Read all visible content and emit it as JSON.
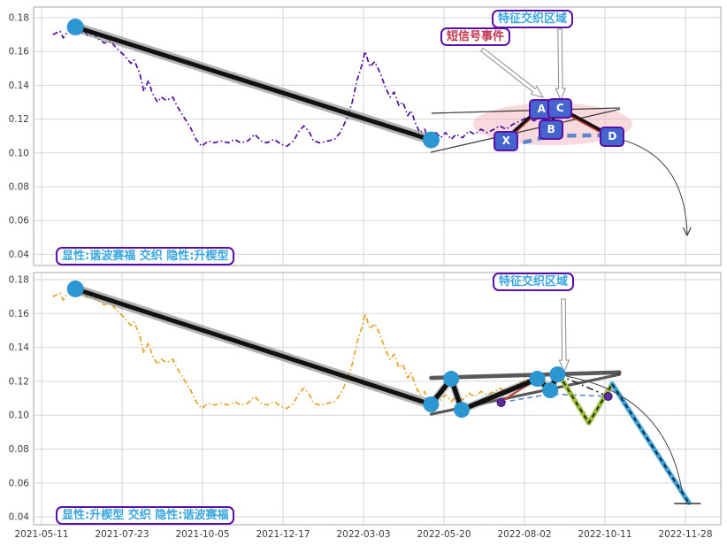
{
  "figure": {
    "background": "#ffffff",
    "grid": "#d5d5dd",
    "spine": "#b4b4bc",
    "tick_text": "#3c3c3c",
    "marker_blue": "#2b96d2",
    "box_fill": "#4565ce",
    "border_purple": "#5a0fa8",
    "label_blue": "#38a6de",
    "label_red": "#c23650",
    "ellipse_pink": "#f0abb4",
    "fit_blue": "#4a7bc8",
    "zigzag_green": "#9dbe3c",
    "zigzag_cyan": "#3fa4dc",
    "pattern_red": "#c03a30",
    "purple_dot": "#5b2c9e",
    "line_black": "#111111"
  },
  "chart_data": {
    "type": "line",
    "x_tick_labels": [
      "2021-05-11",
      "2021-07-23",
      "2021-10-05",
      "2021-12-17",
      "2022-03-03",
      "2022-05-20",
      "2022-08-02",
      "2022-10-11",
      "2022-11-28"
    ],
    "y_ticks": [
      0.18,
      0.16,
      0.14,
      0.12,
      0.1,
      0.08,
      0.06,
      0.04
    ],
    "ylim": [
      0.033,
      0.187
    ],
    "grid": true,
    "price_series_points": [
      [
        0.14,
        0.17
      ],
      [
        0.23,
        0.172
      ],
      [
        0.27,
        0.168
      ],
      [
        0.34,
        0.173
      ],
      [
        0.42,
        0.1745
      ],
      [
        0.47,
        0.17
      ],
      [
        0.53,
        0.172
      ],
      [
        0.58,
        0.169
      ],
      [
        0.64,
        0.171
      ],
      [
        0.69,
        0.168
      ],
      [
        0.78,
        0.165
      ],
      [
        0.86,
        0.166
      ],
      [
        0.93,
        0.162
      ],
      [
        1.02,
        0.158
      ],
      [
        1.11,
        0.153
      ],
      [
        1.15,
        0.155
      ],
      [
        1.22,
        0.147
      ],
      [
        1.27,
        0.1365
      ],
      [
        1.33,
        0.143
      ],
      [
        1.37,
        0.136
      ],
      [
        1.44,
        0.13
      ],
      [
        1.49,
        0.133
      ],
      [
        1.55,
        0.131
      ],
      [
        1.63,
        0.133
      ],
      [
        1.68,
        0.128
      ],
      [
        1.77,
        0.121
      ],
      [
        1.85,
        0.115
      ],
      [
        1.92,
        0.108
      ],
      [
        1.99,
        0.104
      ],
      [
        2.07,
        0.107
      ],
      [
        2.14,
        0.106
      ],
      [
        2.23,
        0.107
      ],
      [
        2.32,
        0.106
      ],
      [
        2.4,
        0.108
      ],
      [
        2.47,
        0.106
      ],
      [
        2.56,
        0.107
      ],
      [
        2.65,
        0.111
      ],
      [
        2.73,
        0.107
      ],
      [
        2.8,
        0.106
      ],
      [
        2.89,
        0.108
      ],
      [
        2.98,
        0.105
      ],
      [
        3.05,
        0.104
      ],
      [
        3.13,
        0.107
      ],
      [
        3.2,
        0.113
      ],
      [
        3.26,
        0.116
      ],
      [
        3.33,
        0.112
      ],
      [
        3.38,
        0.107
      ],
      [
        3.46,
        0.106
      ],
      [
        3.55,
        0.107
      ],
      [
        3.64,
        0.108
      ],
      [
        3.71,
        0.112
      ],
      [
        3.79,
        0.12
      ],
      [
        3.86,
        0.13
      ],
      [
        3.92,
        0.143
      ],
      [
        3.98,
        0.152
      ],
      [
        4.02,
        0.16
      ],
      [
        4.08,
        0.151
      ],
      [
        4.14,
        0.154
      ],
      [
        4.21,
        0.147
      ],
      [
        4.27,
        0.139
      ],
      [
        4.33,
        0.133
      ],
      [
        4.38,
        0.136
      ],
      [
        4.44,
        0.128
      ],
      [
        4.49,
        0.13
      ],
      [
        4.55,
        0.122
      ],
      [
        4.59,
        0.125
      ],
      [
        4.65,
        0.117
      ],
      [
        4.7,
        0.112
      ],
      [
        4.76,
        0.114
      ],
      [
        4.8,
        0.109
      ],
      [
        4.85,
        0.107
      ],
      [
        4.9,
        0.112
      ],
      [
        4.96,
        0.109
      ],
      [
        5.02,
        0.112
      ],
      [
        5.09,
        0.108
      ],
      [
        5.15,
        0.111
      ],
      [
        5.23,
        0.109
      ],
      [
        5.31,
        0.113
      ],
      [
        5.38,
        0.111
      ],
      [
        5.46,
        0.114
      ],
      [
        5.54,
        0.112
      ],
      [
        5.62,
        0.114
      ],
      [
        5.69,
        0.116
      ],
      [
        5.77,
        0.114
      ],
      [
        5.86,
        0.117
      ],
      [
        5.95,
        0.119
      ],
      [
        6.03,
        0.121
      ],
      [
        6.12,
        0.119
      ],
      [
        6.21,
        0.121
      ],
      [
        6.27,
        0.12
      ]
    ],
    "panels": [
      {
        "id": "top",
        "series_color": "#4c0b9b",
        "trend_line": [
          [
            0.42,
            0.1745
          ],
          [
            4.84,
            0.1077
          ]
        ],
        "trend_dots": [
          [
            0.42,
            0.1745
          ],
          [
            4.84,
            0.1077
          ]
        ],
        "wedge_upper": [
          [
            4.85,
            0.1235
          ],
          [
            7.18,
            0.1266
          ]
        ],
        "wedge_lower": [
          [
            4.84,
            0.1004
          ],
          [
            7.18,
            0.1258
          ]
        ],
        "wedge_thick": false,
        "harmonic_points": [
          {
            "label": "X",
            "u": 5.75,
            "v": 0.1077
          },
          {
            "label": "A",
            "u": 6.19,
            "v": 0.1266
          },
          {
            "label": "B",
            "u": 6.31,
            "v": 0.1146
          },
          {
            "label": "C",
            "u": 6.42,
            "v": 0.1271
          },
          {
            "label": "D",
            "u": 7.07,
            "v": 0.1104
          }
        ],
        "harmonic_thick": true,
        "fit_curve": [
          [
            5.8,
            0.104
          ],
          [
            6.31,
            0.11
          ],
          [
            7.0,
            0.1105
          ]
        ],
        "fit_thick": true,
        "ellipse": {
          "c": [
            6.35,
            0.117
          ],
          "ru": 0.99,
          "rv": 0.0125
        },
        "white_arrows": [
          [
            545,
            56,
            614,
            110
          ],
          [
            633,
            33,
            634,
            113
          ]
        ],
        "curve_arrow": {
          "p": [
            703,
            158,
            775,
            178,
            777,
            266
          ],
          "head": true
        },
        "labels": {
          "region": "特征交织区域",
          "event": "短信号事件",
          "summary": "显性:谐波赛福 交织 隐性:升楔型"
        }
      },
      {
        "id": "bottom",
        "series_color": "#e2a427",
        "trend_line": [
          [
            0.42,
            0.1745
          ],
          [
            4.84,
            0.1064
          ]
        ],
        "trend_dots": [
          [
            0.42,
            0.1745
          ]
        ],
        "zigzag": [
          [
            4.84,
            0.1064
          ],
          [
            5.09,
            0.1215
          ],
          [
            5.22,
            0.1032
          ],
          [
            6.16,
            0.1215
          ],
          [
            6.32,
            0.1147
          ],
          [
            6.41,
            0.1241
          ]
        ],
        "wedge_upper": [
          [
            4.84,
            0.122
          ],
          [
            7.18,
            0.1253
          ]
        ],
        "wedge_lower": [
          [
            4.84,
            0.1006
          ],
          [
            7.18,
            0.124
          ]
        ],
        "wedge_thick": true,
        "red_segments": [
          [
            [
              5.71,
              0.108
            ],
            [
              6.16,
              0.1215
            ]
          ],
          [
            [
              6.32,
              0.1147
            ],
            [
              6.41,
              0.1241
            ]
          ]
        ],
        "dashdot_segment": [
          [
            6.41,
            0.1241
          ],
          [
            7.04,
            0.1111
          ]
        ],
        "fit_curve": [
          [
            5.71,
            0.1075
          ],
          [
            6.32,
            0.1125
          ],
          [
            7.04,
            0.1111
          ]
        ],
        "fit_thick": false,
        "purple_dots": [
          [
            5.71,
            0.1074
          ],
          [
            7.04,
            0.1111
          ]
        ],
        "green_zigzag": [
          [
            6.48,
            0.1199
          ],
          [
            6.8,
            0.0954
          ],
          [
            7.09,
            0.1184
          ]
        ],
        "cyan_line": [
          [
            7.09,
            0.1184
          ],
          [
            8.04,
            0.0484
          ]
        ],
        "end_tick": [
          [
            7.86,
            0.0479
          ],
          [
            8.19,
            0.0479
          ]
        ],
        "white_arrows": [
          [
            637,
            338,
            638,
            420
          ]
        ],
        "curve_arrow": {
          "p": [
            640,
            425,
            752,
            446,
            771,
            554
          ],
          "head": false
        },
        "labels": {
          "region": "特征交织区域",
          "summary": "显性:升楔型 交织 隐性:谐波赛福"
        }
      }
    ]
  }
}
